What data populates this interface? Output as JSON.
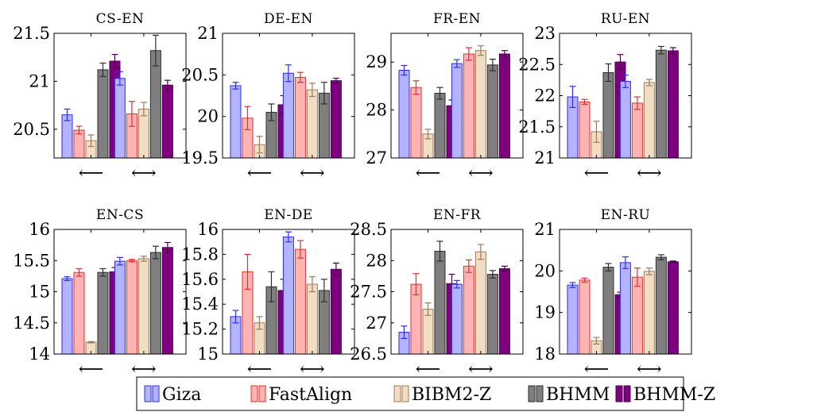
{
  "chart_data": {
    "type": "bar",
    "legend": {
      "placement": "bottom-center",
      "entries": [
        "Giza",
        "FastAlign",
        "BIBM2-Z",
        "BHMM",
        "BHMM-Z"
      ]
    },
    "series_colors": {
      "Giza": {
        "fill": "#b3b3ff",
        "stroke": "#2f2fe0"
      },
      "FastAlign": {
        "fill": "#ffb3b3",
        "stroke": "#e02f2f"
      },
      "BIBM2-Z": {
        "fill": "#f1dcc4",
        "stroke": "#9a7c5c"
      },
      "BHMM": {
        "fill": "#7f7f7f",
        "stroke": "#2e2e2e"
      },
      "BHMM-Z": {
        "fill": "#7f007f",
        "stroke": "#4a004a"
      }
    },
    "panels": [
      {
        "title": "CS-EN",
        "categories": [
          "⟵",
          "⟷"
        ],
        "ylim": [
          20.2,
          21.5
        ],
        "yticks": [
          20.5,
          21,
          21.5
        ],
        "ytick_labels": [
          "20.5",
          "21",
          "21.5"
        ],
        "series": [
          {
            "name": "Giza",
            "values": [
              20.65,
              21.03
            ],
            "errors": [
              0.06,
              0.07
            ]
          },
          {
            "name": "FastAlign",
            "values": [
              20.49,
              20.66
            ],
            "errors": [
              0.04,
              0.13
            ]
          },
          {
            "name": "BIBM2-Z",
            "values": [
              20.38,
              20.71
            ],
            "errors": [
              0.06,
              0.07
            ]
          },
          {
            "name": "BHMM",
            "values": [
              21.12,
              21.32
            ],
            "errors": [
              0.07,
              0.16
            ]
          },
          {
            "name": "BHMM-Z",
            "values": [
              21.21,
              20.96
            ],
            "errors": [
              0.07,
              0.05
            ]
          }
        ]
      },
      {
        "title": "DE-EN",
        "categories": [
          "⟵",
          "⟷"
        ],
        "ylim": [
          19.5,
          21
        ],
        "yticks": [
          19.5,
          20,
          20.5,
          21
        ],
        "ytick_labels": [
          "19.5",
          "20",
          "20.5",
          "21"
        ],
        "series": [
          {
            "name": "Giza",
            "values": [
              20.37,
              20.52
            ],
            "errors": [
              0.04,
              0.1
            ]
          },
          {
            "name": "FastAlign",
            "values": [
              19.98,
              20.47
            ],
            "errors": [
              0.14,
              0.06
            ]
          },
          {
            "name": "BIBM2-Z",
            "values": [
              19.66,
              20.32
            ],
            "errors": [
              0.1,
              0.08
            ]
          },
          {
            "name": "BHMM",
            "values": [
              20.05,
              20.28
            ],
            "errors": [
              0.1,
              0.13
            ]
          },
          {
            "name": "BHMM-Z",
            "values": [
              20.14,
              20.43
            ],
            "errors": [
              0.11,
              0.03
            ]
          }
        ]
      },
      {
        "title": "FR-EN",
        "categories": [
          "⟵",
          "⟷"
        ],
        "ylim": [
          27,
          29.6
        ],
        "yticks": [
          27,
          28,
          29
        ],
        "ytick_labels": [
          "27",
          "28",
          "29"
        ],
        "series": [
          {
            "name": "Giza",
            "values": [
              28.83,
              28.97
            ],
            "errors": [
              0.1,
              0.08
            ]
          },
          {
            "name": "FastAlign",
            "values": [
              28.47,
              29.17
            ],
            "errors": [
              0.14,
              0.13
            ]
          },
          {
            "name": "BIBM2-Z",
            "values": [
              27.5,
              29.24
            ],
            "errors": [
              0.1,
              0.1
            ]
          },
          {
            "name": "BHMM",
            "values": [
              28.35,
              28.94
            ],
            "errors": [
              0.12,
              0.12
            ]
          },
          {
            "name": "BHMM-Z",
            "values": [
              28.09,
              29.17
            ],
            "errors": [
              0.12,
              0.07
            ]
          }
        ]
      },
      {
        "title": "RU-EN",
        "categories": [
          "⟵",
          "⟷"
        ],
        "ylim": [
          21,
          23
        ],
        "yticks": [
          21,
          21.5,
          22,
          22.5,
          23
        ],
        "ytick_labels": [
          "21",
          "21.5",
          "22",
          "22.5",
          "23"
        ],
        "series": [
          {
            "name": "Giza",
            "values": [
              21.98,
              22.23
            ],
            "errors": [
              0.17,
              0.1
            ]
          },
          {
            "name": "FastAlign",
            "values": [
              21.9,
              21.88
            ],
            "errors": [
              0.04,
              0.1
            ]
          },
          {
            "name": "BIBM2-Z",
            "values": [
              21.42,
              22.21
            ],
            "errors": [
              0.17,
              0.05
            ]
          },
          {
            "name": "BHMM",
            "values": [
              22.37,
              22.73
            ],
            "errors": [
              0.14,
              0.06
            ]
          },
          {
            "name": "BHMM-Z",
            "values": [
              22.54,
              22.72
            ],
            "errors": [
              0.12,
              0.05
            ]
          }
        ]
      },
      {
        "title": "EN-CS",
        "categories": [
          "⟵",
          "⟷"
        ],
        "ylim": [
          14,
          16
        ],
        "yticks": [
          14,
          14.5,
          15,
          15.5,
          16
        ],
        "ytick_labels": [
          "14",
          "14.5",
          "15",
          "15.5",
          "16"
        ],
        "series": [
          {
            "name": "Giza",
            "values": [
              15.21,
              15.49
            ],
            "errors": [
              0.03,
              0.06
            ]
          },
          {
            "name": "FastAlign",
            "values": [
              15.31,
              15.5
            ],
            "errors": [
              0.06,
              0.02
            ]
          },
          {
            "name": "BIBM2-Z",
            "values": [
              14.19,
              15.53
            ],
            "errors": [
              0.01,
              0.04
            ]
          },
          {
            "name": "BHMM",
            "values": [
              15.31,
              15.63
            ],
            "errors": [
              0.06,
              0.1
            ]
          },
          {
            "name": "BHMM-Z",
            "values": [
              15.32,
              15.71
            ],
            "errors": [
              0.07,
              0.08
            ]
          }
        ]
      },
      {
        "title": "EN-DE",
        "categories": [
          "⟵",
          "⟷"
        ],
        "ylim": [
          15,
          16
        ],
        "yticks": [
          15,
          15.2,
          15.4,
          15.6,
          15.8,
          16
        ],
        "ytick_labels": [
          "15",
          "15.2",
          "15.4",
          "15.6",
          "15.8",
          "16"
        ],
        "series": [
          {
            "name": "Giza",
            "values": [
              15.3,
              15.94
            ],
            "errors": [
              0.05,
              0.04
            ]
          },
          {
            "name": "FastAlign",
            "values": [
              15.66,
              15.84
            ],
            "errors": [
              0.14,
              0.07
            ]
          },
          {
            "name": "BIBM2-Z",
            "values": [
              15.25,
              15.56
            ],
            "errors": [
              0.05,
              0.06
            ]
          },
          {
            "name": "BHMM",
            "values": [
              15.54,
              15.51
            ],
            "errors": [
              0.12,
              0.09
            ]
          },
          {
            "name": "BHMM-Z",
            "values": [
              15.51,
              15.68
            ],
            "errors": [
              0.09,
              0.05
            ]
          }
        ]
      },
      {
        "title": "EN-FR",
        "categories": [
          "⟵",
          "⟷"
        ],
        "ylim": [
          26.5,
          28.5
        ],
        "yticks": [
          26.5,
          27,
          27.5,
          28,
          28.5
        ],
        "ytick_labels": [
          "26.5",
          "27",
          "27.5",
          "28",
          "28.5"
        ],
        "series": [
          {
            "name": "Giza",
            "values": [
              26.85,
              27.62
            ],
            "errors": [
              0.1,
              0.06
            ]
          },
          {
            "name": "FastAlign",
            "values": [
              27.62,
              27.91
            ],
            "errors": [
              0.17,
              0.1
            ]
          },
          {
            "name": "BIBM2-Z",
            "values": [
              27.22,
              28.14
            ],
            "errors": [
              0.1,
              0.12
            ]
          },
          {
            "name": "BHMM",
            "values": [
              28.15,
              27.78
            ],
            "errors": [
              0.16,
              0.06
            ]
          },
          {
            "name": "BHMM-Z",
            "values": [
              27.63,
              27.87
            ],
            "errors": [
              0.15,
              0.04
            ]
          }
        ]
      },
      {
        "title": "EN-RU",
        "categories": [
          "⟵",
          "⟷"
        ],
        "ylim": [
          18,
          21
        ],
        "yticks": [
          18,
          19,
          20,
          21
        ],
        "ytick_labels": [
          "18",
          "19",
          "20",
          "21"
        ],
        "series": [
          {
            "name": "Giza",
            "values": [
              19.66,
              20.2
            ],
            "errors": [
              0.06,
              0.14
            ]
          },
          {
            "name": "FastAlign",
            "values": [
              19.78,
              19.85
            ],
            "errors": [
              0.05,
              0.22
            ]
          },
          {
            "name": "BIBM2-Z",
            "values": [
              18.32,
              19.99
            ],
            "errors": [
              0.08,
              0.08
            ]
          },
          {
            "name": "BHMM",
            "values": [
              20.09,
              20.33
            ],
            "errors": [
              0.09,
              0.06
            ]
          },
          {
            "name": "BHMM-Z",
            "values": [
              19.43,
              20.22
            ],
            "errors": [
              0.06,
              0.02
            ]
          }
        ]
      }
    ]
  }
}
